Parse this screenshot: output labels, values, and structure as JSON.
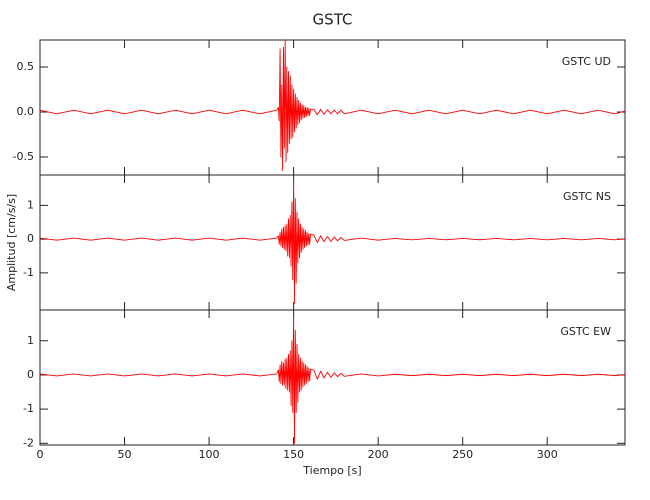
{
  "chart_data": [
    {
      "type": "line",
      "title": "GSTC",
      "label": "GSTC   UD",
      "color": "#ff0000",
      "xlim": [
        0,
        346
      ],
      "xticks": [
        0,
        50,
        100,
        150,
        200,
        250,
        300
      ],
      "ylim": [
        -0.7,
        0.8
      ],
      "yticks": [
        {
          "value": -0.5,
          "label": "-0.5"
        },
        {
          "value": 0,
          "label": "0.0"
        },
        {
          "value": 0.5,
          "label": "0.5"
        }
      ],
      "x": [
        0,
        10,
        20,
        30,
        40,
        50,
        60,
        70,
        80,
        90,
        100,
        110,
        120,
        130,
        140,
        141,
        141.5,
        142,
        142.5,
        143,
        143.5,
        144,
        144.5,
        145,
        145.5,
        146,
        146.5,
        147,
        147.5,
        148,
        148.5,
        149,
        149.5,
        150,
        150.5,
        151,
        151.5,
        152,
        152.5,
        153,
        153.5,
        154,
        154.5,
        155,
        155.5,
        156,
        156.5,
        157,
        157.5,
        158,
        158.5,
        159,
        159.5,
        160,
        162,
        164,
        166,
        168,
        170,
        172,
        174,
        176,
        178,
        180,
        190,
        200,
        210,
        220,
        230,
        240,
        250,
        260,
        270,
        280,
        290,
        300,
        310,
        320,
        330,
        340,
        346
      ],
      "values": [
        0.02,
        -0.02,
        0.02,
        -0.02,
        0.02,
        -0.02,
        0.02,
        -0.02,
        0.02,
        -0.02,
        0.02,
        -0.02,
        0.02,
        -0.02,
        0.02,
        0.05,
        -0.1,
        0.7,
        -0.5,
        0.3,
        -0.65,
        0.72,
        -0.4,
        0.8,
        -0.55,
        0.5,
        -0.45,
        0.45,
        -0.35,
        0.4,
        -0.3,
        0.3,
        -0.28,
        0.25,
        -0.22,
        0.2,
        -0.18,
        0.16,
        -0.14,
        0.13,
        -0.12,
        0.1,
        -0.09,
        0.08,
        -0.07,
        0.07,
        -0.06,
        0.05,
        -0.05,
        0.05,
        -0.04,
        0.04,
        -0.04,
        0.03,
        0.03,
        -0.03,
        0.03,
        -0.025,
        0.025,
        -0.02,
        0.02,
        -0.02,
        0.02,
        -0.02,
        0.02,
        -0.02,
        0.02,
        -0.02,
        0.02,
        -0.02,
        0.02,
        -0.02,
        0.02,
        -0.02,
        0.02,
        -0.02,
        0.02,
        -0.02,
        0.02,
        -0.02,
        0.01
      ]
    },
    {
      "type": "line",
      "label": "GSTC   NS",
      "ylabel": "Amplitud [cm/s/s]",
      "color": "#ff0000",
      "xlim": [
        0,
        346
      ],
      "xticks": [
        0,
        50,
        100,
        150,
        200,
        250,
        300
      ],
      "ylim": [
        -2.1,
        1.9
      ],
      "yticks": [
        -1,
        0,
        1
      ],
      "x": [
        0,
        10,
        20,
        30,
        40,
        50,
        60,
        70,
        80,
        90,
        100,
        110,
        120,
        130,
        140,
        141,
        141.5,
        142,
        142.5,
        143,
        143.5,
        144,
        144.5,
        145,
        145.5,
        146,
        146.5,
        147,
        147.5,
        148,
        148.5,
        149,
        149.5,
        150,
        150.5,
        151,
        151.5,
        152,
        152.5,
        153,
        153.5,
        154,
        154.5,
        155,
        155.5,
        156,
        156.5,
        157,
        157.5,
        158,
        158.5,
        159,
        159.5,
        160,
        162,
        164,
        166,
        168,
        170,
        172,
        174,
        176,
        178,
        180,
        190,
        200,
        210,
        220,
        230,
        240,
        250,
        260,
        270,
        280,
        290,
        300,
        310,
        320,
        330,
        340,
        346
      ],
      "values": [
        0.03,
        -0.03,
        0.03,
        -0.03,
        0.03,
        -0.03,
        0.03,
        -0.03,
        0.03,
        -0.03,
        0.03,
        -0.03,
        0.03,
        -0.03,
        0.03,
        0.1,
        -0.15,
        0.2,
        -0.2,
        0.3,
        -0.25,
        0.35,
        -0.3,
        0.4,
        -0.35,
        0.45,
        -0.5,
        0.6,
        -0.55,
        0.7,
        -0.8,
        1.1,
        -1.2,
        1.8,
        -1.9,
        1.2,
        -1.3,
        0.8,
        -0.7,
        0.6,
        -0.55,
        0.45,
        -0.4,
        0.35,
        -0.3,
        0.3,
        -0.25,
        0.25,
        -0.2,
        0.2,
        -0.18,
        0.17,
        -0.15,
        0.15,
        0.12,
        -0.1,
        0.1,
        -0.08,
        0.08,
        -0.07,
        0.06,
        -0.05,
        0.05,
        -0.04,
        0.03,
        -0.03,
        0.02,
        -0.02,
        0.02,
        -0.02,
        0.02,
        -0.02,
        0.02,
        -0.02,
        0.02,
        -0.02,
        0.02,
        -0.02,
        0.02,
        -0.02,
        0.01
      ]
    },
    {
      "type": "line",
      "label": "GSTC   EW",
      "xlabel": "Tiempo [s]",
      "color": "#ff0000",
      "xlim": [
        0,
        346
      ],
      "xticks": [
        0,
        50,
        100,
        150,
        200,
        250,
        300
      ],
      "ylim": [
        -2.05,
        1.9
      ],
      "yticks": [
        -2,
        -1,
        0,
        1
      ],
      "x": [
        0,
        10,
        20,
        30,
        40,
        50,
        60,
        70,
        80,
        90,
        100,
        110,
        120,
        130,
        140,
        141,
        141.5,
        142,
        142.5,
        143,
        143.5,
        144,
        144.5,
        145,
        145.5,
        146,
        146.5,
        147,
        147.5,
        148,
        148.5,
        149,
        149.5,
        150,
        150.5,
        151,
        151.5,
        152,
        152.5,
        153,
        153.5,
        154,
        154.5,
        155,
        155.5,
        156,
        156.5,
        157,
        157.5,
        158,
        158.5,
        159,
        159.5,
        160,
        162,
        164,
        166,
        168,
        170,
        172,
        174,
        176,
        178,
        180,
        190,
        200,
        210,
        220,
        230,
        240,
        250,
        260,
        270,
        280,
        290,
        300,
        310,
        320,
        330,
        340,
        346
      ],
      "values": [
        0.03,
        -0.03,
        0.03,
        -0.03,
        0.03,
        -0.03,
        0.03,
        -0.03,
        0.03,
        -0.03,
        0.03,
        -0.03,
        0.03,
        -0.03,
        0.03,
        0.15,
        -0.2,
        0.3,
        -0.25,
        0.4,
        -0.3,
        0.35,
        -0.3,
        0.45,
        -0.4,
        0.5,
        -0.45,
        0.6,
        -0.5,
        0.7,
        -0.9,
        1.0,
        -1.1,
        1.8,
        -2.0,
        1.3,
        -1.1,
        0.9,
        -0.8,
        0.6,
        -0.5,
        0.5,
        -0.45,
        0.4,
        -0.35,
        0.35,
        -0.3,
        0.3,
        -0.25,
        0.25,
        -0.2,
        0.2,
        -0.18,
        0.17,
        0.14,
        -0.12,
        0.11,
        -0.09,
        0.08,
        -0.07,
        0.06,
        -0.05,
        0.05,
        -0.04,
        0.03,
        -0.03,
        0.02,
        -0.02,
        0.02,
        -0.02,
        0.02,
        -0.02,
        0.02,
        -0.02,
        0.02,
        -0.02,
        0.02,
        -0.02,
        0.02,
        -0.02,
        0.01
      ]
    }
  ]
}
